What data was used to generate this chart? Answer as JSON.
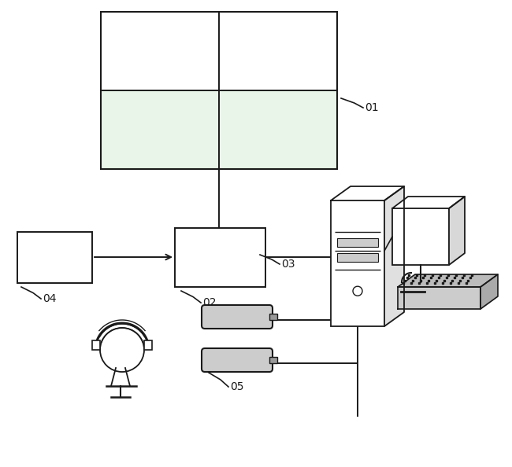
{
  "bg_color": "#ffffff",
  "line_color": "#1a1a1a",
  "label_01": "01",
  "label_02": "02",
  "label_03": "03",
  "label_04": "04",
  "label_05": "05",
  "figw": 6.5,
  "figh": 5.94,
  "dpi": 100
}
